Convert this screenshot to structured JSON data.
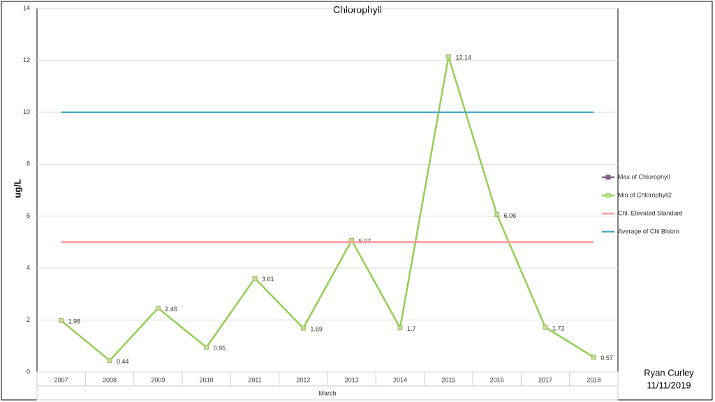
{
  "chart_data": {
    "type": "line",
    "title": "Chlorophyll",
    "x_label": "March",
    "y_label": "ug/L",
    "categories": [
      "2007",
      "2008",
      "2009",
      "2010",
      "2011",
      "2012",
      "2013",
      "2014",
      "2015",
      "2016",
      "2017",
      "2018"
    ],
    "series": [
      {
        "name": "Max of Chlorophyll",
        "color": "#7f6084",
        "marker": true,
        "values": [
          null,
          null,
          null,
          null,
          null,
          null,
          null,
          null,
          null,
          null,
          null,
          null
        ]
      },
      {
        "name": "Min of Chlorophyll2",
        "color": "#92d050",
        "marker": true,
        "data_labels": true,
        "values": [
          1.98,
          0.44,
          2.46,
          0.95,
          3.61,
          1.69,
          5.07,
          1.7,
          12.14,
          6.06,
          1.72,
          0.57
        ]
      },
      {
        "name": "Chl. Elevated Standard",
        "color": "#ff9999",
        "marker": false,
        "values": [
          5,
          5,
          5,
          5,
          5,
          5,
          5,
          5,
          5,
          5,
          5,
          5
        ]
      },
      {
        "name": "Average of Chl Bloom",
        "color": "#4bacc6",
        "marker": false,
        "values": [
          10,
          10,
          10,
          10,
          10,
          10,
          10,
          10,
          10,
          10,
          10,
          10
        ]
      }
    ],
    "ylim": [
      0,
      14
    ],
    "yticks": [
      0,
      2,
      4,
      6,
      8,
      10,
      12,
      14
    ],
    "grid": true,
    "legend": "right",
    "annotations": [
      "Ryan Curley",
      "11/11/2019"
    ]
  }
}
